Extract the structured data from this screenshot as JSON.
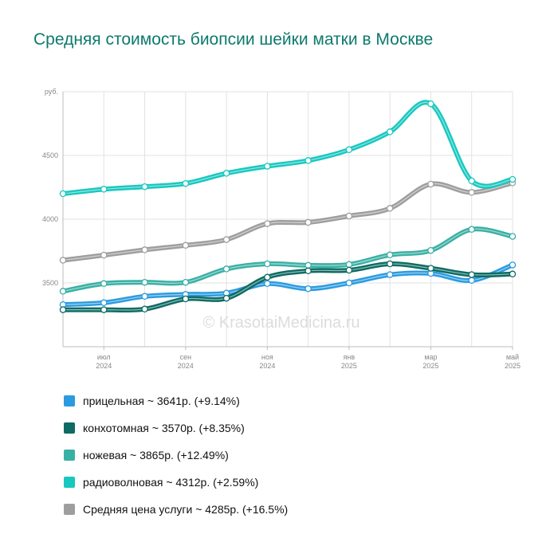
{
  "title": "Средняя стоимость биопсии шейки матки в Москве",
  "watermark": "© KrasotaiMedicina.ru",
  "legend": [
    {
      "label": "прицельная ~ 3641р. (+9.14%)",
      "color": "#2b9be0"
    },
    {
      "label": "конхотомная ~ 3570р. (+8.35%)",
      "color": "#0d6b63"
    },
    {
      "label": "ножевая ~ 3865р. (+12.49%)",
      "color": "#3ab0a5"
    },
    {
      "label": "радиоволновая ~ 4312р. (+2.59%)",
      "color": "#18c8c0"
    },
    {
      "label": "Средняя цена услуги ~ 4285р. (+16.5%)",
      "color": "#9e9e9e"
    }
  ],
  "chart_data": {
    "type": "line",
    "y_unit_label": "руб.",
    "y_ticks": [
      3500,
      4000,
      4500
    ],
    "ylim": [
      3000,
      5000
    ],
    "x": [
      "2024-06",
      "2024-07",
      "2024-08",
      "2024-09",
      "2024-10",
      "2024-11",
      "2024-12",
      "2025-01",
      "2025-02",
      "2025-03",
      "2025-04",
      "2025-05"
    ],
    "x_tick_labels": [
      {
        "month": "июл",
        "year": "2024"
      },
      {
        "month": "сен",
        "year": "2024"
      },
      {
        "month": "ноя",
        "year": "2024"
      },
      {
        "month": "янв",
        "year": "2025"
      },
      {
        "month": "мар",
        "year": "2025"
      },
      {
        "month": "май",
        "year": "2025"
      }
    ],
    "grid": true,
    "series": [
      {
        "name": "Средняя цена услуги",
        "color": "#9e9e9e",
        "values": [
          3678,
          3718,
          3760,
          3795,
          3840,
          3965,
          3975,
          4025,
          4085,
          4275,
          4210,
          4285
        ]
      },
      {
        "name": "ножевая",
        "color": "#3ab0a5",
        "values": [
          3435,
          3495,
          3505,
          3505,
          3610,
          3650,
          3638,
          3645,
          3720,
          3755,
          3920,
          3865
        ]
      },
      {
        "name": "прицельная",
        "color": "#2b9be0",
        "values": [
          3330,
          3345,
          3395,
          3410,
          3420,
          3495,
          3455,
          3500,
          3565,
          3575,
          3520,
          3641
        ]
      },
      {
        "name": "конхотомная",
        "color": "#0d6b63",
        "values": [
          3290,
          3290,
          3295,
          3375,
          3380,
          3545,
          3595,
          3600,
          3650,
          3615,
          3565,
          3570
        ]
      },
      {
        "name": "радиоволновая",
        "color": "#18c8c0",
        "values": [
          4200,
          4235,
          4255,
          4280,
          4360,
          4415,
          4460,
          4545,
          4685,
          4905,
          4300,
          4312
        ]
      }
    ]
  }
}
